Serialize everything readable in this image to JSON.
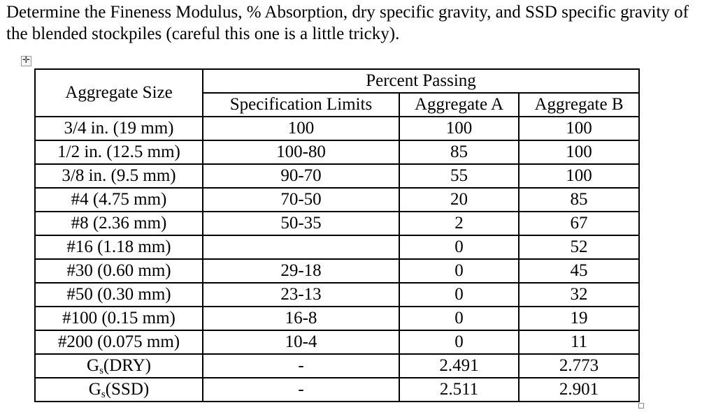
{
  "prompt": "Determine the Fineness Modulus, % Absorption, dry specific gravity, and SSD specific gravity of the blended stockpiles (careful this one is a little tricky).",
  "table": {
    "header_size": "Aggregate Size",
    "header_group": "Percent Passing",
    "columns": [
      "Specification Limits",
      "Aggregate A",
      "Aggregate B"
    ],
    "rows": [
      {
        "size": "3/4 in. (19 mm)",
        "spec": "100",
        "a": "100",
        "b": "100"
      },
      {
        "size": "1/2 in. (12.5 mm)",
        "spec": "100-80",
        "a": "85",
        "b": "100"
      },
      {
        "size": "3/8 in. (9.5 mm)",
        "spec": "90-70",
        "a": "55",
        "b": "100"
      },
      {
        "size": "#4 (4.75 mm)",
        "spec": "70-50",
        "a": "20",
        "b": "85"
      },
      {
        "size": "#8 (2.36 mm)",
        "spec": "50-35",
        "a": "2",
        "b": "67"
      },
      {
        "size": "#16 (1.18 mm)",
        "spec": "",
        "a": "0",
        "b": "52"
      },
      {
        "size": "#30 (0.60 mm)",
        "spec": "29-18",
        "a": "0",
        "b": "45"
      },
      {
        "size": "#50 (0.30 mm)",
        "spec": "23-13",
        "a": "0",
        "b": "32"
      },
      {
        "size": "#100 (0.15 mm)",
        "spec": "16-8",
        "a": "0",
        "b": "19"
      },
      {
        "size": "#200 (0.075 mm)",
        "spec": "10-4",
        "a": "0",
        "b": "11"
      }
    ],
    "gravity_rows": [
      {
        "main": "G",
        "sub": "s",
        "rest": "(DRY)",
        "spec": "-",
        "a": "2.491",
        "b": "2.773"
      },
      {
        "main": "G",
        "sub": "s",
        "rest": "(SSD)",
        "spec": "-",
        "a": "2.511",
        "b": "2.901"
      }
    ]
  },
  "icons": {
    "move": "move-handle-icon",
    "resize": "resize-handle-icon"
  }
}
